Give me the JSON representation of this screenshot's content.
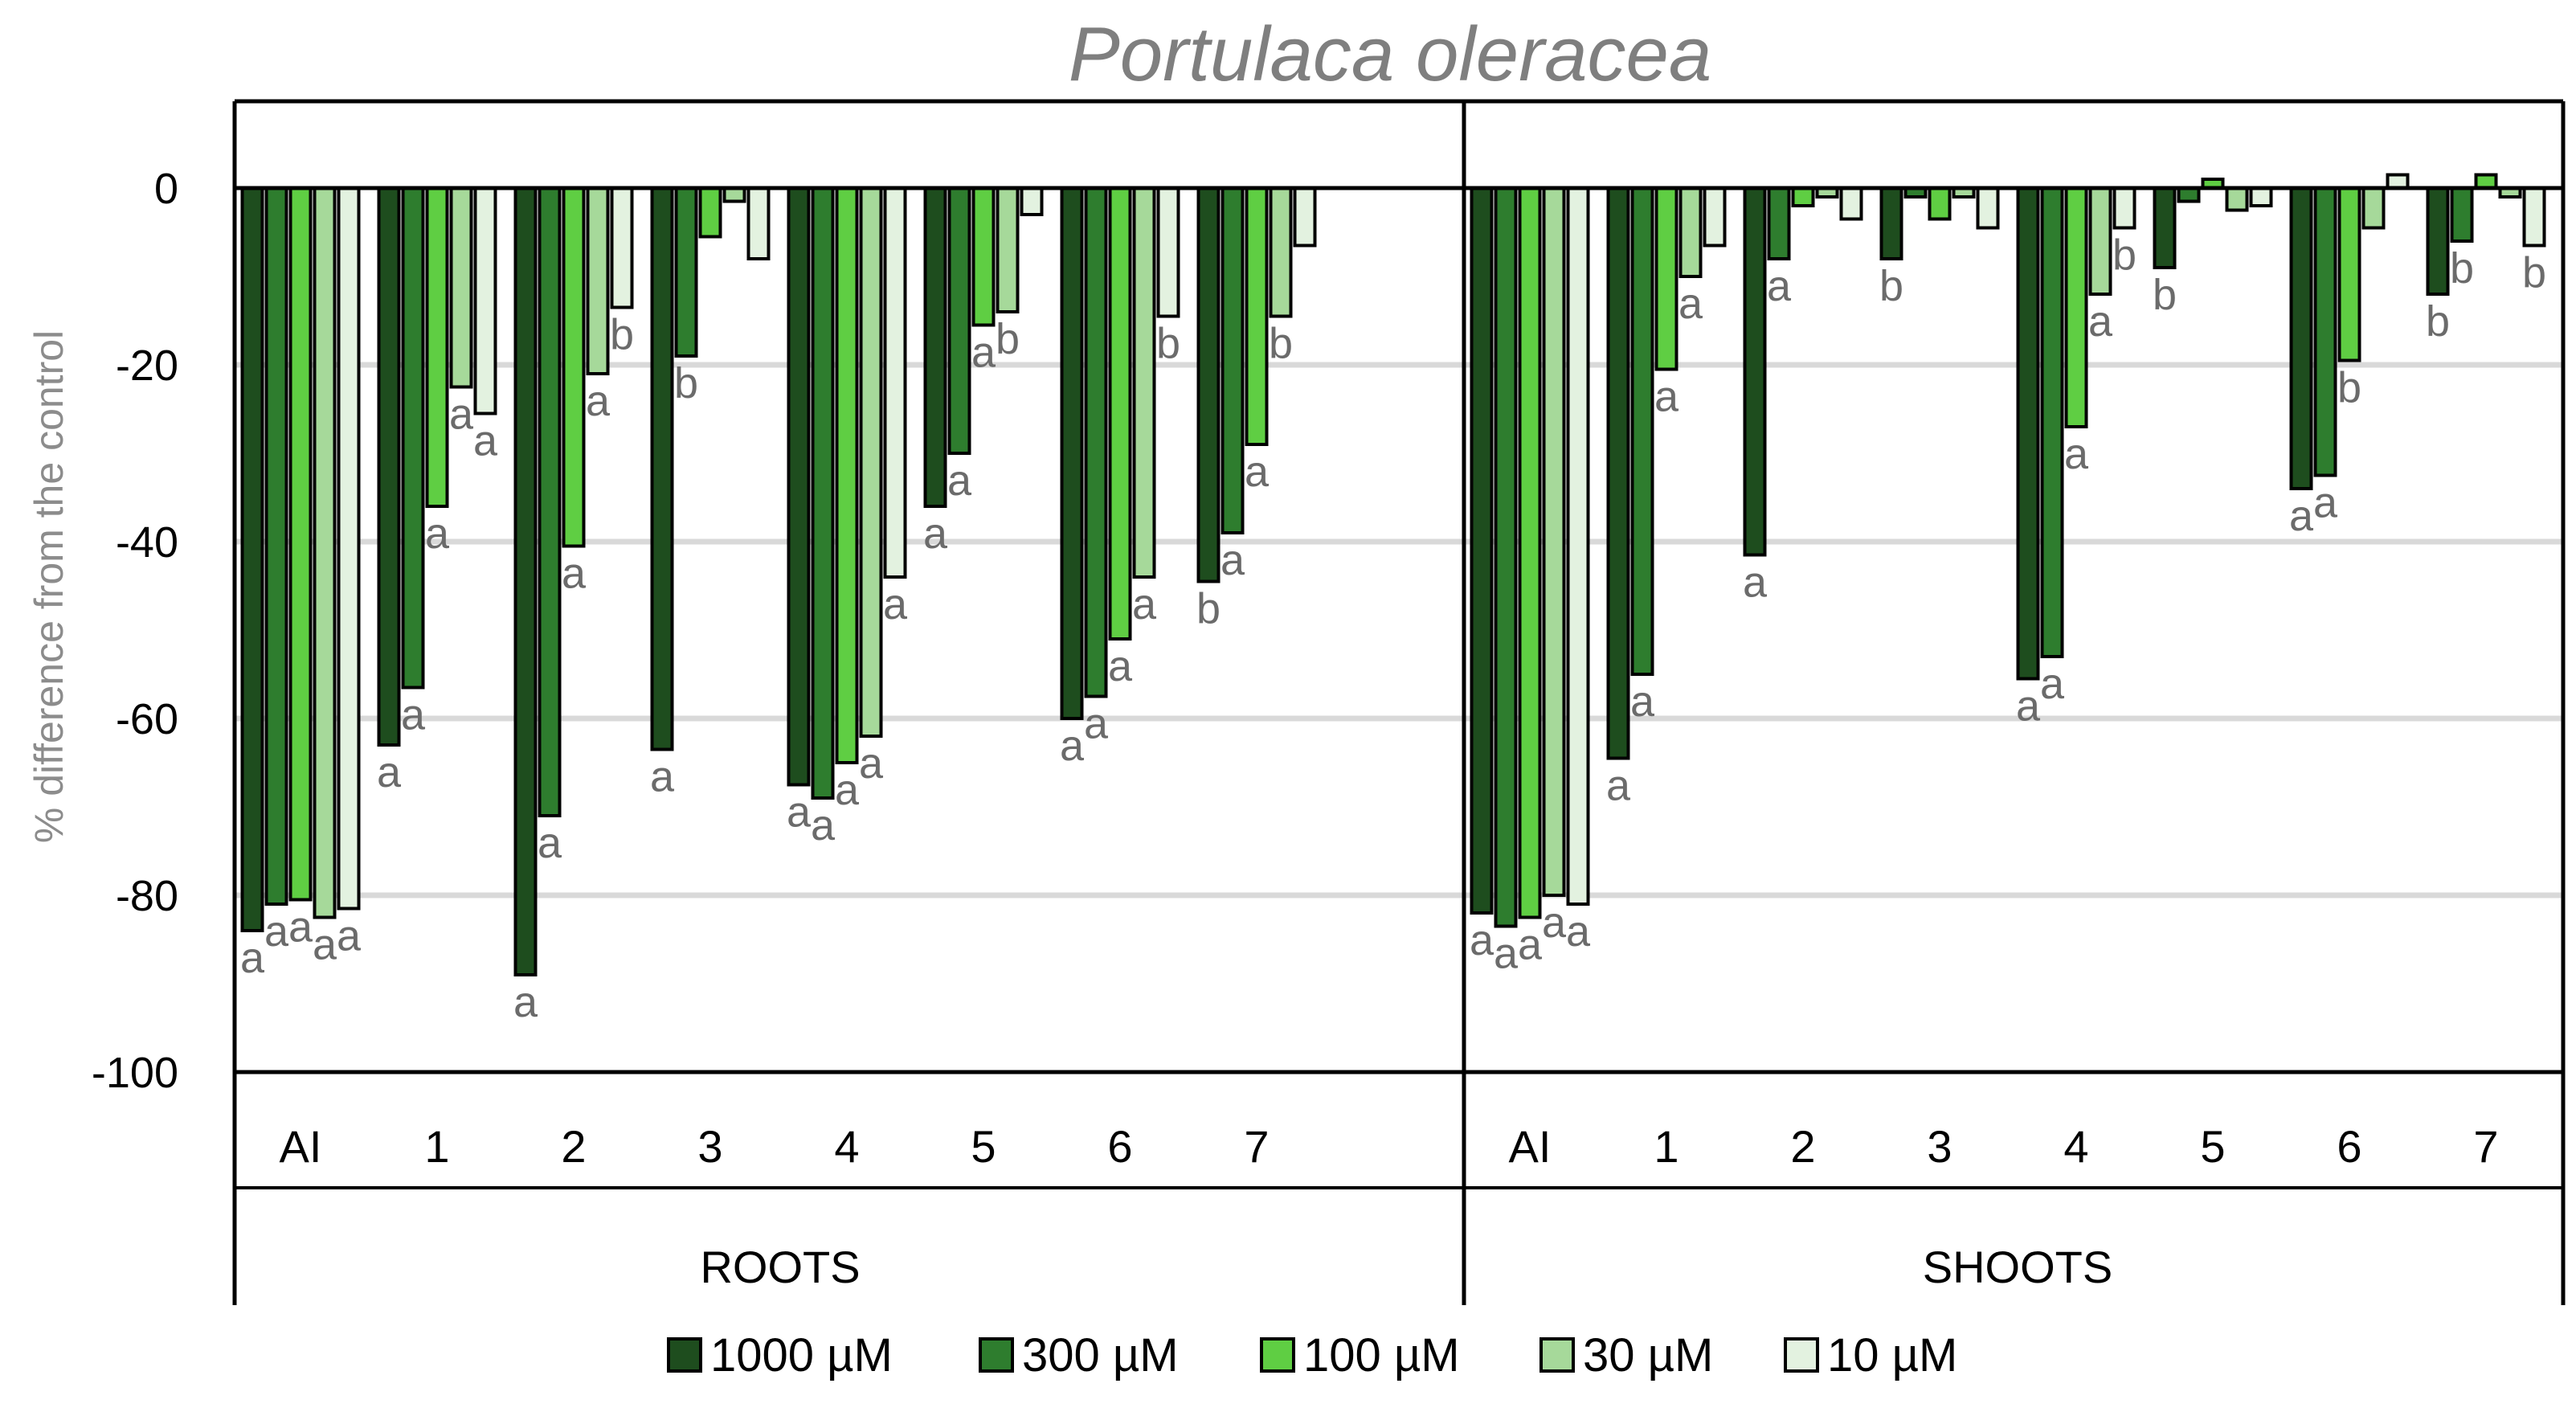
{
  "chart_data": {
    "type": "bar",
    "title": "Portulaca oleracea",
    "ylabel": "% difference from the control",
    "ylim": [
      -100,
      0
    ],
    "yticks": [
      0,
      -20,
      -40,
      -60,
      -80,
      -100
    ],
    "grid": true,
    "legend_position": "bottom",
    "groups": [
      "ROOTS",
      "SHOOTS"
    ],
    "categories": [
      "AI",
      "1",
      "2",
      "3",
      "4",
      "5",
      "6",
      "7"
    ],
    "series": [
      {
        "name": "1000 µM",
        "color": "#1e4d1e",
        "roots": [
          -84,
          -63,
          -89,
          -63.5,
          -67.5,
          -36,
          -60,
          -44.5
        ],
        "shoots": [
          -82,
          -64.5,
          -41.5,
          -8,
          -55.5,
          -9,
          -34,
          -12
        ]
      },
      {
        "name": "300 µM",
        "color": "#2e7d2e",
        "roots": [
          -81,
          -56.5,
          -71,
          -19,
          -69,
          -30,
          -57.5,
          -39
        ],
        "shoots": [
          -83.5,
          -55,
          -8,
          -1,
          -53,
          -1.5,
          -32.5,
          -6
        ]
      },
      {
        "name": "100 µM",
        "color": "#5fce43",
        "roots": [
          -80.5,
          -36,
          -40.5,
          -5.5,
          -65,
          -15.5,
          -51,
          -29
        ],
        "shoots": [
          -82.5,
          -20.5,
          -2,
          -3.5,
          -27,
          1,
          -19.5,
          1.5
        ]
      },
      {
        "name": "30 µM",
        "color": "#a6d99a",
        "roots": [
          -82.5,
          -22.5,
          -21,
          -1.5,
          -62,
          -14,
          -44,
          -14.5
        ],
        "shoots": [
          -80,
          -10,
          -1,
          -1,
          -12,
          -2.5,
          -4.5,
          -1
        ]
      },
      {
        "name": "10 µM",
        "color": "#e3f2e0",
        "roots": [
          -81.5,
          -25.5,
          -13.5,
          -8,
          -44,
          -3,
          -14.5,
          -6.5
        ],
        "shoots": [
          -81,
          -6.5,
          -3.5,
          -4.5,
          -4.5,
          -2,
          1.5,
          -6.5
        ]
      }
    ],
    "significance_letters": {
      "roots": [
        [
          "a",
          "a",
          "a",
          "a",
          "a"
        ],
        [
          "a",
          "a",
          "a",
          "a",
          "a"
        ],
        [
          "a",
          "a",
          "a",
          "a",
          "b"
        ],
        [
          "a",
          "b",
          "",
          "",
          ""
        ],
        [
          "a",
          "a",
          "a",
          "a",
          "a"
        ],
        [
          "a",
          "a",
          "a",
          "b",
          ""
        ],
        [
          "a",
          "a",
          "a",
          "a",
          "b"
        ],
        [
          "b",
          "a",
          "a",
          "b",
          ""
        ]
      ],
      "shoots": [
        [
          "a",
          "a",
          "a",
          "a",
          "a"
        ],
        [
          "a",
          "a",
          "a",
          "a",
          ""
        ],
        [
          "a",
          "a",
          "",
          "",
          ""
        ],
        [
          "b",
          "",
          "",
          "",
          ""
        ],
        [
          "a",
          "a",
          "a",
          "a",
          "b"
        ],
        [
          "b",
          "",
          "",
          "",
          ""
        ],
        [
          "a",
          "a",
          "b",
          "",
          ""
        ],
        [
          "b",
          "b",
          "",
          "",
          "b"
        ]
      ]
    }
  }
}
